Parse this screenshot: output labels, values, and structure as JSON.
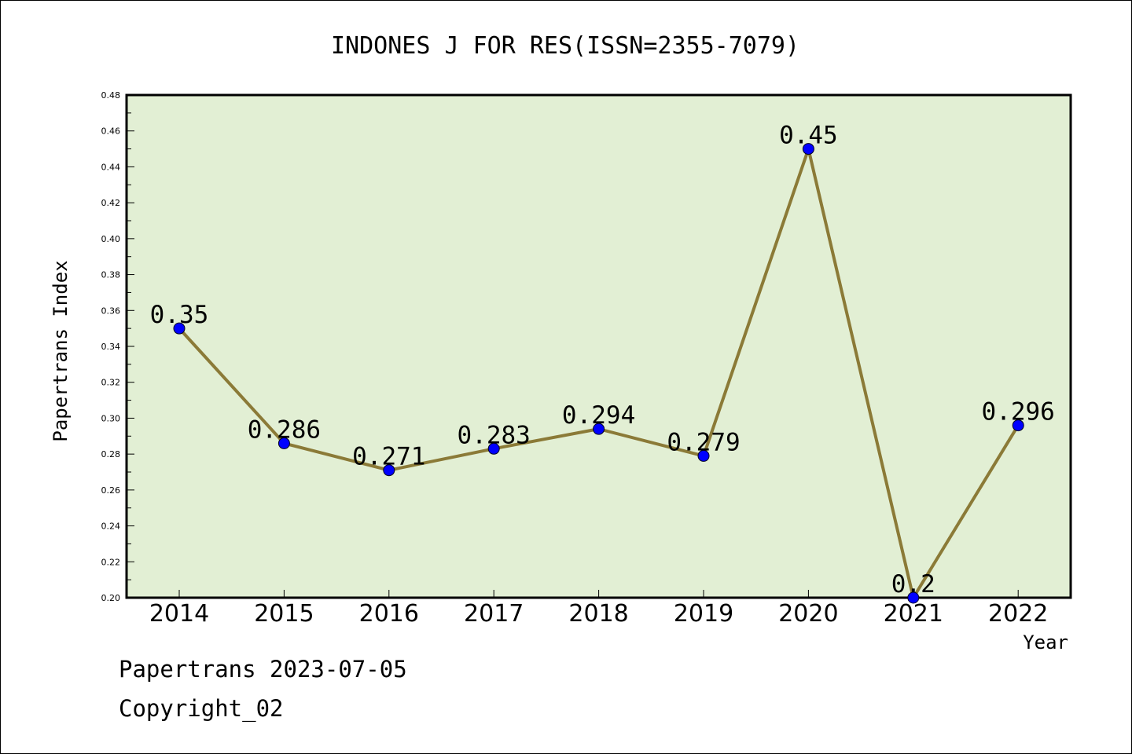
{
  "chart_data": {
    "type": "line",
    "title": "INDONES J FOR RES(ISSN=2355-7079)",
    "xlabel": "Year",
    "ylabel": "Papertrans Index",
    "categories": [
      "2014",
      "2015",
      "2016",
      "2017",
      "2018",
      "2019",
      "2020",
      "2021",
      "2022"
    ],
    "values": [
      0.35,
      0.286,
      0.271,
      0.283,
      0.294,
      0.279,
      0.45,
      0.2,
      0.296
    ],
    "data_labels": [
      "0.35",
      "0.286",
      "0.271",
      "0.283",
      "0.294",
      "0.279",
      "0.45",
      "0.2",
      "0.296"
    ],
    "ylim": [
      0.2,
      0.48
    ],
    "yticks": [
      "0.20",
      "0.22",
      "0.24",
      "0.26",
      "0.28",
      "0.30",
      "0.32",
      "0.34",
      "0.36",
      "0.38",
      "0.40",
      "0.42",
      "0.44",
      "0.46",
      "0.48"
    ],
    "grid": false,
    "colors": {
      "plot_background": "#e2efd4",
      "line": "#8b7a37",
      "marker": "#0000ff"
    }
  },
  "footer": {
    "date_line": "Papertrans 2023-07-05",
    "copyright": "Copyright_02"
  }
}
